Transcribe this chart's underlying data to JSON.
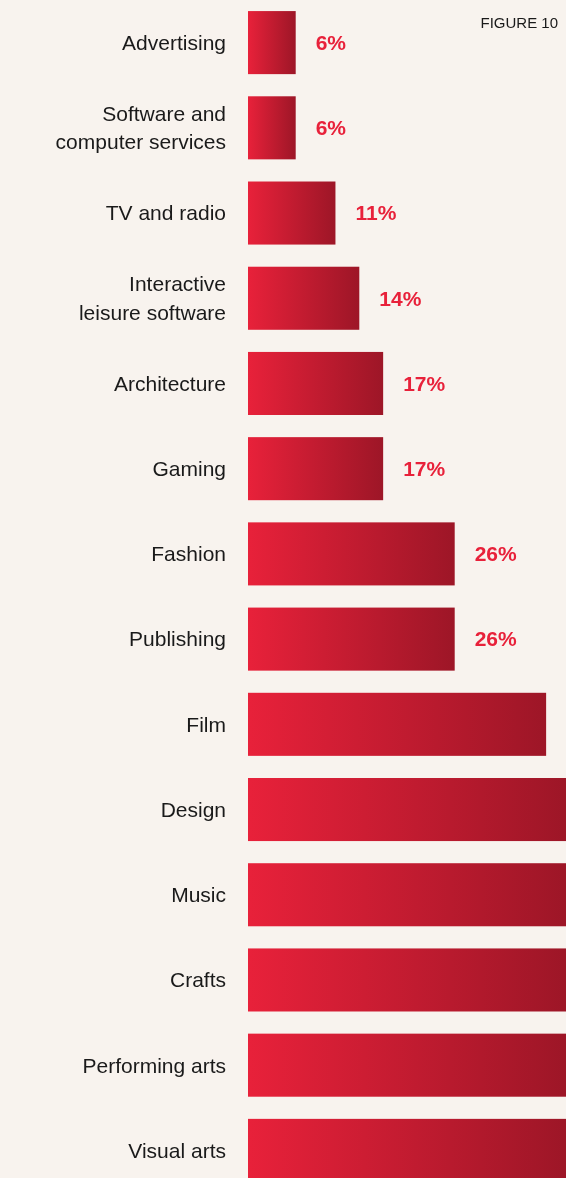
{
  "chart_data": {
    "type": "bar",
    "orientation": "horizontal",
    "title": "FIGURE 10",
    "categories": [
      "Advertising",
      "Software and computer services",
      "TV and radio",
      "Interactive leisure software",
      "Architecture",
      "Gaming",
      "Fashion",
      "Publishing",
      "Film",
      "Design",
      "Music",
      "Crafts",
      "Performing arts",
      "Visual arts"
    ],
    "values": [
      6,
      6,
      11,
      14,
      17,
      17,
      26,
      26,
      37.5,
      40,
      40,
      40,
      40,
      40
    ],
    "value_labels": [
      "6%",
      "6%",
      "11%",
      "14%",
      "17%",
      "17%",
      "26%",
      "26%",
      null,
      null,
      null,
      null,
      null,
      null
    ],
    "color": "#e8213a",
    "xlim": [
      0,
      40
    ],
    "tick_labels": "y"
  }
}
